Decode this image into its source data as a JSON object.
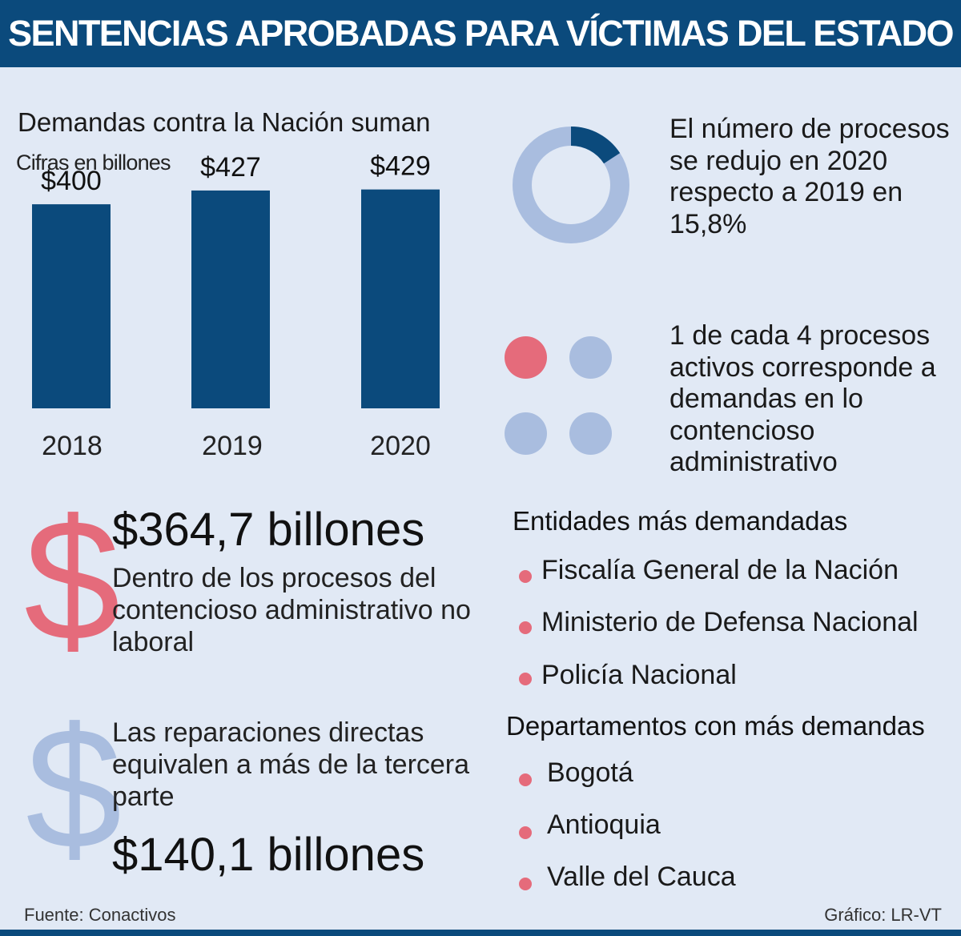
{
  "header": {
    "title": "SENTENCIAS APROBADAS PARA VÍCTIMAS DEL ESTADO"
  },
  "chart_data": {
    "type": "bar",
    "title": "Demandas contra la Nación suman",
    "subtitle": "Cifras en billones",
    "categories": [
      "2018",
      "2019",
      "2020"
    ],
    "values": [
      400,
      427,
      429
    ],
    "value_labels": [
      "$400",
      "$427",
      "$429"
    ],
    "ylim": [
      0,
      430
    ],
    "grid": false,
    "bar_color": "#0b4a7c"
  },
  "donut": {
    "text": "El número de procesos se redujo en 2020 respecto a 2019 en 15,8%",
    "value": 15.8,
    "highlight_color": "#0b4a7c",
    "base_color": "#a9bddf"
  },
  "dots": {
    "text": "1 de cada 4 procesos activos corresponde a demandas en lo contencioso administrativo",
    "highlighted": 1,
    "total": 4,
    "highlight_color": "#e56b7b",
    "base_color": "#a9bddf"
  },
  "stat1": {
    "symbol": "$",
    "amount": "$364,7 billones",
    "text": "Dentro de los procesos del contencioso administrativo no laboral"
  },
  "stat2": {
    "symbol": "$",
    "text": "Las reparaciones directas equivalen a más de la tercera parte",
    "amount": "$140,1 billones"
  },
  "entidades": {
    "title": "Entidades más demandadas",
    "items": [
      "Fiscalía General de la Nación",
      "Ministerio de Defensa Nacional",
      "Policía Nacional"
    ]
  },
  "departamentos": {
    "title": "Departamentos con más demandas",
    "items": [
      "Bogotá",
      "Antioquia",
      "Valle del Cauca"
    ]
  },
  "footer": {
    "source": "Fuente: Conactivos",
    "credit": "Gráfico: LR-VT"
  }
}
